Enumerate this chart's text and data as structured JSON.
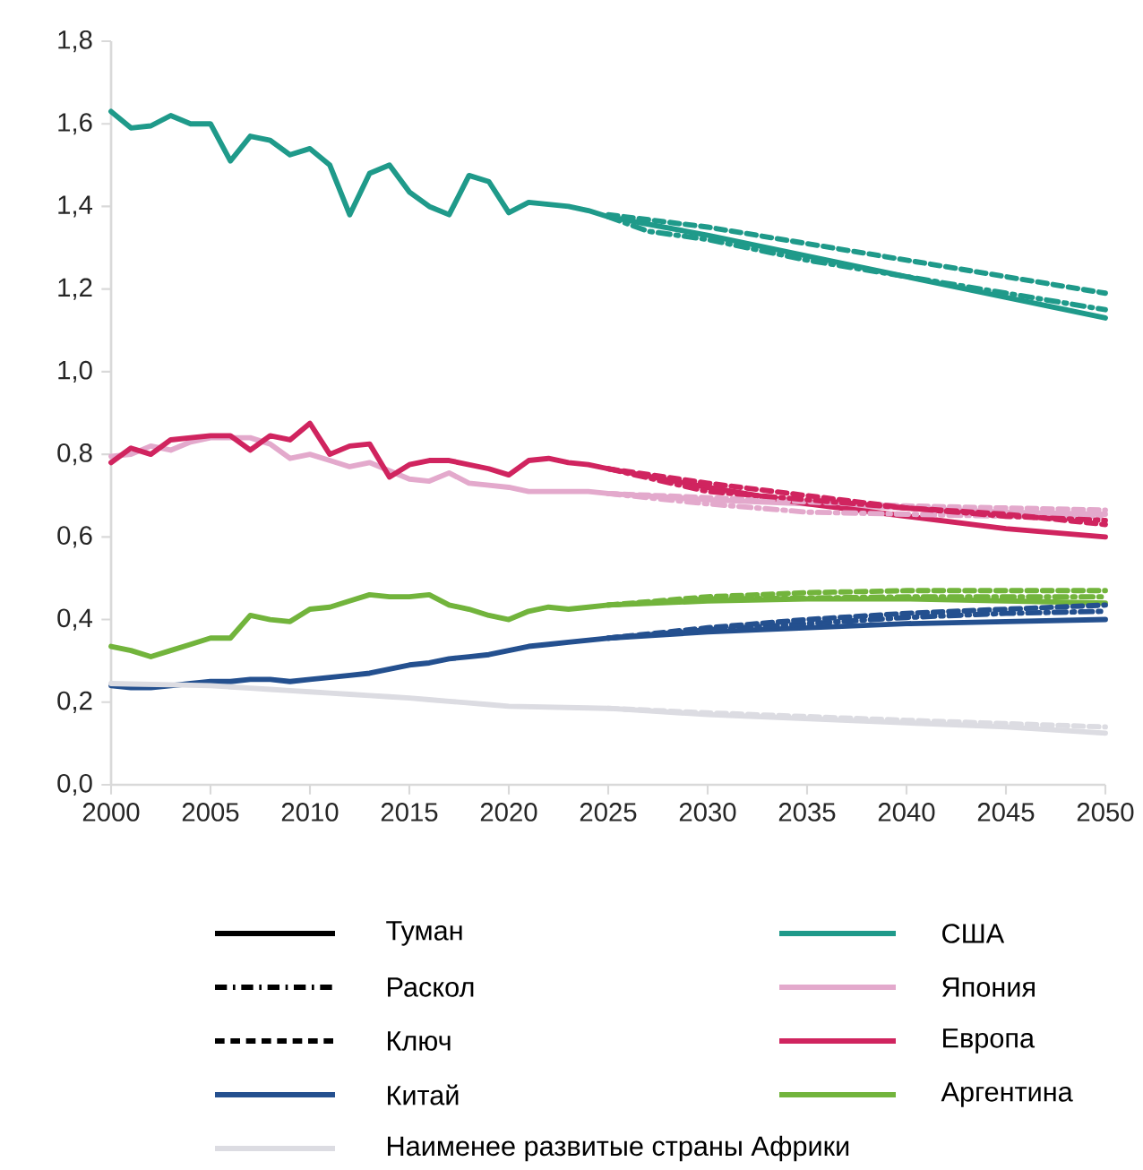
{
  "chart_data": {
    "type": "line",
    "legend": "bottom",
    "x": [
      2000,
      2001,
      2002,
      2003,
      2004,
      2005,
      2006,
      2007,
      2008,
      2009,
      2010,
      2011,
      2012,
      2013,
      2014,
      2015,
      2016,
      2017,
      2018,
      2019,
      2020,
      2021,
      2022,
      2023,
      2024,
      2025,
      2030,
      2035,
      2040,
      2045,
      2050
    ],
    "xlim": [
      2000,
      2050
    ],
    "xticks": [
      2000,
      2005,
      2010,
      2015,
      2020,
      2025,
      2030,
      2035,
      2040,
      2045,
      2050
    ],
    "ylim": [
      0,
      1.8
    ],
    "yticks": [
      {
        "value": 0,
        "label": "0,0"
      },
      {
        "value": 0.2,
        "label": "0,2"
      },
      {
        "value": 0.4,
        "label": "0,4"
      },
      {
        "value": 0.6,
        "label": "0,6"
      },
      {
        "value": 0.8,
        "label": "0,8"
      },
      {
        "value": 1.0,
        "label": "1,0"
      },
      {
        "value": 1.2,
        "label": "1,2"
      },
      {
        "value": 1.4,
        "label": "1,4"
      },
      {
        "value": 1.6,
        "label": "1,6"
      },
      {
        "value": 1.8,
        "label": "1,8"
      }
    ],
    "series": [
      {
        "name": "Туман",
        "color": "#000000",
        "line_style": "solid",
        "values": [
          null,
          null,
          null,
          null,
          null,
          null,
          null,
          null,
          null,
          null,
          null,
          null,
          null,
          null,
          null,
          null,
          null,
          null,
          null,
          null,
          null,
          null,
          null,
          null,
          null,
          null,
          null,
          null,
          null,
          null,
          null
        ]
      },
      {
        "name": "Раскол",
        "color": "#000000",
        "line_style": "dashdot",
        "values": [
          null,
          null,
          null,
          null,
          null,
          null,
          null,
          null,
          null,
          null,
          null,
          null,
          null,
          null,
          null,
          null,
          null,
          null,
          null,
          null,
          null,
          null,
          null,
          null,
          null,
          null,
          null,
          null,
          null,
          null,
          null
        ]
      },
      {
        "name": "Ключ",
        "color": "#000000",
        "line_style": "dashed",
        "values": [
          null,
          null,
          null,
          null,
          null,
          null,
          null,
          null,
          null,
          null,
          null,
          null,
          null,
          null,
          null,
          null,
          null,
          null,
          null,
          null,
          null,
          null,
          null,
          null,
          null,
          null,
          null,
          null,
          null,
          null,
          null
        ]
      },
      {
        "name": "Китай",
        "color": "#24508f",
        "line_style": "solid",
        "values": [
          0.24,
          0.235,
          0.235,
          0.24,
          0.245,
          0.25,
          0.25,
          0.255,
          0.255,
          0.25,
          0.255,
          0.26,
          0.265,
          0.27,
          0.28,
          0.29,
          0.295,
          0.305,
          0.31,
          0.315,
          0.325,
          0.335,
          0.34,
          0.345,
          0.35,
          0.355,
          0.37,
          0.38,
          0.39,
          0.395,
          0.4
        ]
      },
      {
        "name": "Наименее развитые страны Африки",
        "color": "#dcdce2",
        "line_style": "solid",
        "values": [
          0.245,
          0.244,
          0.243,
          0.242,
          0.241,
          0.24,
          0.237,
          0.234,
          0.231,
          0.228,
          0.225,
          0.222,
          0.219,
          0.216,
          0.213,
          0.21,
          0.206,
          0.202,
          0.198,
          0.194,
          0.19,
          0.189,
          0.188,
          0.187,
          0.186,
          0.185,
          0.17,
          0.16,
          0.15,
          0.14,
          0.125
        ]
      },
      {
        "name": "США",
        "color": "#1f9a8a",
        "line_style": "solid",
        "values": [
          1.63,
          1.59,
          1.595,
          1.62,
          1.6,
          1.6,
          1.51,
          1.57,
          1.56,
          1.525,
          1.54,
          1.5,
          1.38,
          1.48,
          1.5,
          1.435,
          1.4,
          1.38,
          1.475,
          1.46,
          1.385,
          1.41,
          1.405,
          1.4,
          1.39,
          1.375,
          1.33,
          1.28,
          1.23,
          1.18,
          1.13
        ]
      },
      {
        "name": "Япония",
        "color": "#e3a9cc",
        "line_style": "solid",
        "values": [
          0.795,
          0.8,
          0.82,
          0.81,
          0.83,
          0.84,
          0.84,
          0.84,
          0.825,
          0.79,
          0.8,
          0.785,
          0.77,
          0.78,
          0.76,
          0.74,
          0.735,
          0.755,
          0.73,
          0.725,
          0.72,
          0.71,
          0.71,
          0.71,
          0.71,
          0.705,
          0.69,
          0.68,
          0.67,
          0.66,
          0.655
        ]
      },
      {
        "name": "Европа",
        "color": "#d0245f",
        "line_style": "solid",
        "values": [
          0.78,
          0.815,
          0.8,
          0.835,
          0.84,
          0.845,
          0.845,
          0.81,
          0.845,
          0.835,
          0.875,
          0.8,
          0.82,
          0.825,
          0.745,
          0.775,
          0.785,
          0.785,
          0.775,
          0.765,
          0.75,
          0.785,
          0.79,
          0.78,
          0.775,
          0.765,
          0.72,
          0.68,
          0.65,
          0.62,
          0.6
        ]
      },
      {
        "name": "Аргентина",
        "color": "#72b43c",
        "line_style": "solid",
        "values": [
          0.335,
          0.325,
          0.31,
          0.325,
          0.34,
          0.355,
          0.355,
          0.41,
          0.4,
          0.395,
          0.425,
          0.43,
          0.445,
          0.46,
          0.455,
          0.455,
          0.46,
          0.435,
          0.425,
          0.41,
          0.4,
          0.42,
          0.43,
          0.425,
          0.43,
          0.435,
          0.445,
          0.45,
          0.45,
          0.445,
          0.44
        ]
      },
      {
        "color": "#24508f",
        "line_style": "dashdot",
        "x": [
          2025,
          2030,
          2035,
          2040,
          2045,
          2050
        ],
        "values": [
          0.355,
          0.375,
          0.39,
          0.405,
          0.415,
          0.42
        ]
      },
      {
        "color": "#24508f",
        "line_style": "dashed",
        "x": [
          2025,
          2030,
          2035,
          2040,
          2045,
          2050
        ],
        "values": [
          0.355,
          0.38,
          0.4,
          0.415,
          0.425,
          0.435
        ]
      },
      {
        "color": "#dcdce2",
        "line_style": "dashed",
        "x": [
          2025,
          2030,
          2035,
          2040,
          2045,
          2050
        ],
        "values": [
          0.185,
          0.174,
          0.165,
          0.156,
          0.148,
          0.14
        ]
      },
      {
        "color": "#1f9a8a",
        "line_style": "dashdot",
        "x": [
          2025,
          2027,
          2030,
          2035,
          2040,
          2045,
          2050
        ],
        "values": [
          1.375,
          1.34,
          1.32,
          1.27,
          1.23,
          1.19,
          1.15
        ]
      },
      {
        "color": "#1f9a8a",
        "line_style": "dashed",
        "x": [
          2025,
          2030,
          2035,
          2040,
          2045,
          2050
        ],
        "values": [
          1.38,
          1.35,
          1.31,
          1.27,
          1.23,
          1.19
        ]
      },
      {
        "color": "#e3a9cc",
        "line_style": "dashdot",
        "x": [
          2025,
          2030,
          2035,
          2040,
          2045,
          2050
        ],
        "values": [
          0.705,
          0.68,
          0.66,
          0.655,
          0.65,
          0.65
        ]
      },
      {
        "color": "#e3a9cc",
        "line_style": "dashed",
        "x": [
          2025,
          2030,
          2035,
          2040,
          2045,
          2050
        ],
        "values": [
          0.705,
          0.695,
          0.685,
          0.675,
          0.67,
          0.665
        ]
      },
      {
        "color": "#d0245f",
        "line_style": "dashdot",
        "x": [
          2025,
          2030,
          2035,
          2040,
          2045,
          2050
        ],
        "values": [
          0.765,
          0.71,
          0.69,
          0.67,
          0.65,
          0.64
        ]
      },
      {
        "color": "#d0245f",
        "line_style": "dashed",
        "x": [
          2025,
          2030,
          2035,
          2040,
          2045,
          2050
        ],
        "values": [
          0.765,
          0.73,
          0.7,
          0.67,
          0.655,
          0.63
        ]
      },
      {
        "color": "#72b43c",
        "line_style": "dashdot",
        "x": [
          2025,
          2030,
          2035,
          2040,
          2045,
          2050
        ],
        "values": [
          0.435,
          0.45,
          0.452,
          0.455,
          0.455,
          0.455
        ]
      },
      {
        "color": "#72b43c",
        "line_style": "dashed",
        "x": [
          2025,
          2030,
          2035,
          2040,
          2045,
          2050
        ],
        "values": [
          0.435,
          0.455,
          0.465,
          0.47,
          0.47,
          0.47
        ]
      }
    ]
  }
}
